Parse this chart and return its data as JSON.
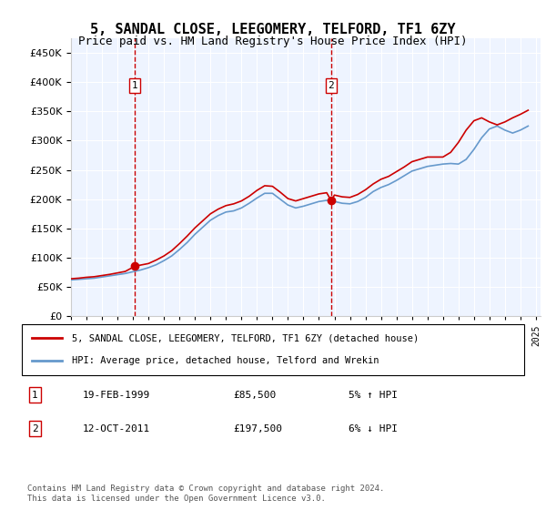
{
  "title": "5, SANDAL CLOSE, LEEGOMERY, TELFORD, TF1 6ZY",
  "subtitle": "Price paid vs. HM Land Registry's House Price Index (HPI)",
  "legend_line1": "5, SANDAL CLOSE, LEEGOMERY, TELFORD, TF1 6ZY (detached house)",
  "legend_line2": "HPI: Average price, detached house, Telford and Wrekin",
  "transaction1_label": "1",
  "transaction1_date": "19-FEB-1999",
  "transaction1_price": "£85,500",
  "transaction1_hpi": "5% ↑ HPI",
  "transaction2_label": "2",
  "transaction2_date": "12-OCT-2011",
  "transaction2_price": "£197,500",
  "transaction2_hpi": "6% ↓ HPI",
  "footnote": "Contains HM Land Registry data © Crown copyright and database right 2024.\nThis data is licensed under the Open Government Licence v3.0.",
  "sale_color": "#cc0000",
  "hpi_color": "#6699cc",
  "background_color": "#ddeeff",
  "plot_bg": "#eef4ff",
  "ylim": [
    0,
    475000
  ],
  "yticks": [
    0,
    50000,
    100000,
    150000,
    200000,
    250000,
    300000,
    350000,
    400000,
    450000
  ],
  "sale_years": [
    1999.13,
    2011.79
  ],
  "sale_prices": [
    85500,
    197500
  ],
  "hpi_years": [
    1995.0,
    1995.5,
    1996.0,
    1996.5,
    1997.0,
    1997.5,
    1998.0,
    1998.5,
    1999.0,
    1999.5,
    2000.0,
    2000.5,
    2001.0,
    2001.5,
    2002.0,
    2002.5,
    2003.0,
    2003.5,
    2004.0,
    2004.5,
    2005.0,
    2005.5,
    2006.0,
    2006.5,
    2007.0,
    2007.5,
    2008.0,
    2008.5,
    2009.0,
    2009.5,
    2010.0,
    2010.5,
    2011.0,
    2011.5,
    2012.0,
    2012.5,
    2013.0,
    2013.5,
    2014.0,
    2014.5,
    2015.0,
    2015.5,
    2016.0,
    2016.5,
    2017.0,
    2017.5,
    2018.0,
    2018.5,
    2019.0,
    2019.5,
    2020.0,
    2020.5,
    2021.0,
    2021.5,
    2022.0,
    2022.5,
    2023.0,
    2023.5,
    2024.0,
    2024.5
  ],
  "hpi_values": [
    62000,
    63000,
    64000,
    65000,
    67000,
    69000,
    71000,
    73000,
    76000,
    79000,
    83000,
    88000,
    95000,
    103000,
    114000,
    126000,
    140000,
    152000,
    164000,
    172000,
    178000,
    180000,
    185000,
    193000,
    202000,
    210000,
    210000,
    200000,
    190000,
    185000,
    188000,
    192000,
    196000,
    198000,
    196000,
    193000,
    192000,
    196000,
    203000,
    213000,
    220000,
    225000,
    232000,
    240000,
    248000,
    252000,
    256000,
    258000,
    260000,
    261000,
    260000,
    268000,
    285000,
    305000,
    320000,
    325000,
    318000,
    313000,
    318000,
    325000
  ],
  "sold_line_years": [
    1995.0,
    1995.5,
    1996.0,
    1996.5,
    1997.0,
    1997.5,
    1998.0,
    1998.5,
    1999.13,
    1999.13,
    2000.0,
    2000.5,
    2001.0,
    2001.5,
    2002.0,
    2002.5,
    2003.0,
    2003.5,
    2004.0,
    2004.5,
    2005.0,
    2005.5,
    2006.0,
    2006.5,
    2007.0,
    2007.5,
    2008.0,
    2008.5,
    2009.0,
    2009.5,
    2010.0,
    2010.5,
    2011.0,
    2011.5,
    2011.79,
    2011.79,
    2012.0,
    2012.5,
    2013.0,
    2013.5,
    2014.0,
    2014.5,
    2015.0,
    2015.5,
    2016.0,
    2016.5,
    2017.0,
    2017.5,
    2018.0,
    2018.5,
    2019.0,
    2019.5,
    2020.0,
    2020.5,
    2021.0,
    2021.5,
    2022.0,
    2022.5,
    2023.0,
    2023.5,
    2024.0,
    2024.5
  ],
  "sold_line_values": [
    64000,
    65000,
    66500,
    67500,
    69500,
    71500,
    74000,
    76500,
    85500,
    85500,
    90000,
    96000,
    103000,
    112000,
    124000,
    137000,
    151000,
    163000,
    175000,
    183000,
    189000,
    192000,
    197000,
    205000,
    215000,
    223000,
    222000,
    212000,
    201000,
    197000,
    201000,
    205000,
    209000,
    211000,
    197500,
    197500,
    207000,
    204000,
    203000,
    208000,
    216000,
    226000,
    234000,
    239000,
    247000,
    255000,
    264000,
    268000,
    272000,
    272000,
    272000,
    280000,
    297000,
    318000,
    334000,
    339000,
    332000,
    327000,
    332000,
    339000,
    345000,
    352000
  ],
  "xtick_years": [
    1995,
    1996,
    1997,
    1998,
    1999,
    2000,
    2001,
    2002,
    2003,
    2004,
    2005,
    2006,
    2007,
    2008,
    2009,
    2010,
    2011,
    2012,
    2013,
    2014,
    2015,
    2016,
    2017,
    2018,
    2019,
    2020,
    2021,
    2022,
    2023,
    2024,
    2025
  ]
}
